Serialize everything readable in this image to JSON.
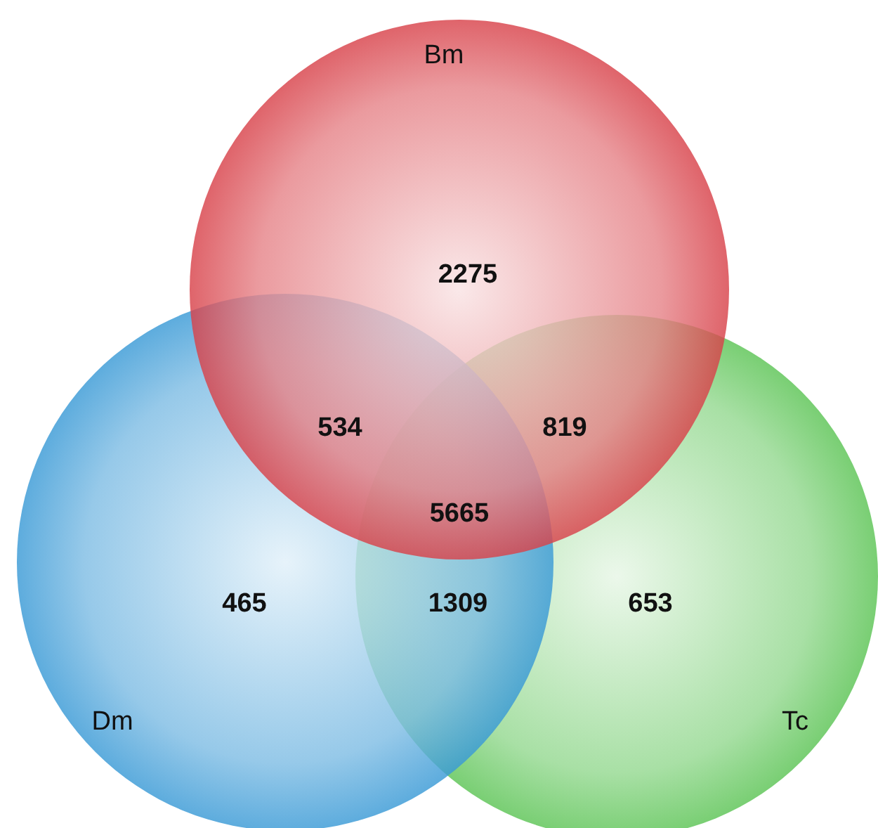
{
  "chart_data": {
    "type": "other",
    "categories": [
      null,
      null,
      null,
      null,
      null,
      null,
      null
    ],
    "values": [
      2275,
      534,
      819,
      5665,
      465,
      1309,
      653
    ],
    "annotations": [
      "Bm",
      "Dm",
      "Tc"
    ],
    "data_labels": true
  }
}
